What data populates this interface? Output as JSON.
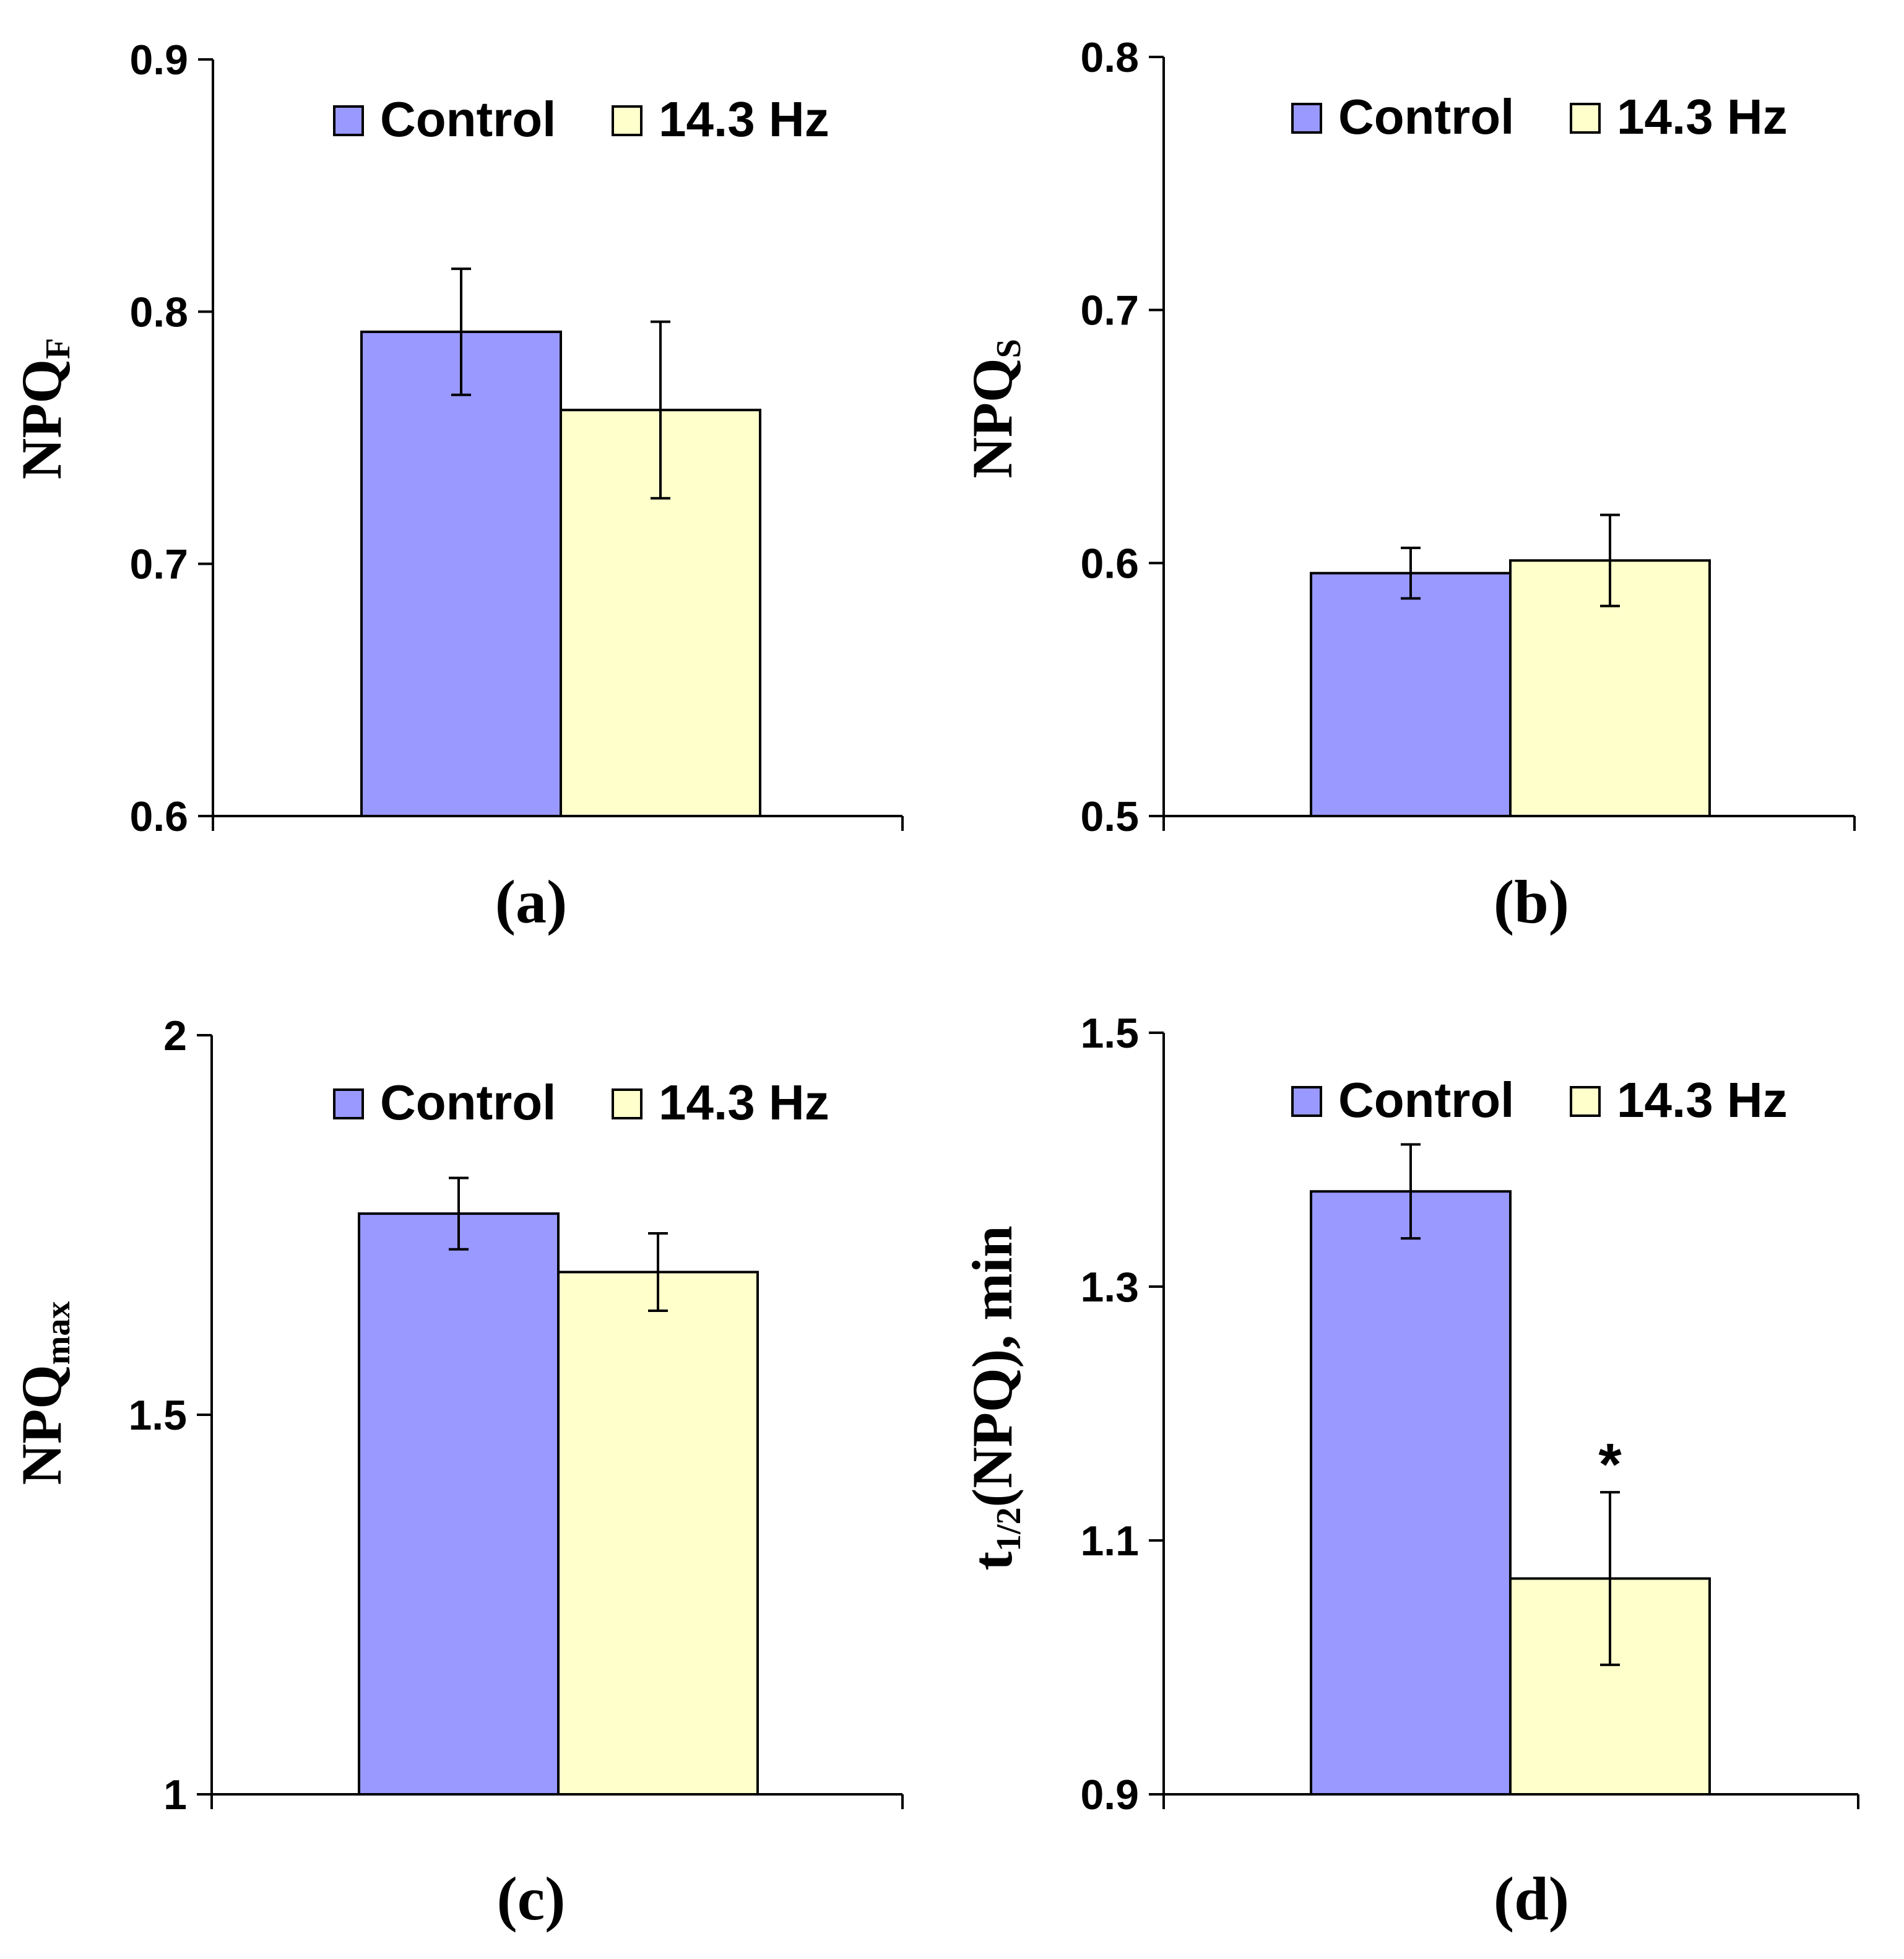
{
  "colors": {
    "control": "#9999ff",
    "treated": "#ffffcc",
    "axis": "#000000"
  },
  "chart_data": [
    {
      "type": "bar",
      "panel": "(a)",
      "ylabel": {
        "main": "NPQ",
        "sub": "F"
      },
      "ylim": [
        0.6,
        0.9
      ],
      "yticks": [
        "0.6",
        "0.7",
        "0.8",
        "0.9"
      ],
      "legend": [
        "Control",
        "14.3 Hz"
      ],
      "series": [
        {
          "name": "Control",
          "value": 0.792,
          "err": 0.025
        },
        {
          "name": "14.3 Hz",
          "value": 0.761,
          "err": 0.035
        }
      ],
      "annotation": ""
    },
    {
      "type": "bar",
      "panel": "(b)",
      "ylabel": {
        "main": "NPQ",
        "sub": "S"
      },
      "ylim": [
        0.5,
        0.8
      ],
      "yticks": [
        "0.5",
        "0.6",
        "0.7",
        "0.8"
      ],
      "legend": [
        "Control",
        "14.3 Hz"
      ],
      "series": [
        {
          "name": "Control",
          "value": 0.596,
          "err": 0.01
        },
        {
          "name": "14.3 Hz",
          "value": 0.601,
          "err": 0.018
        }
      ],
      "annotation": ""
    },
    {
      "type": "bar",
      "panel": "(c)",
      "ylabel": {
        "main": "NPQ",
        "sub": "max"
      },
      "ylim": [
        1,
        2
      ],
      "yticks": [
        "1",
        "1.5",
        "2"
      ],
      "legend": [
        "Control",
        "14.3 Hz"
      ],
      "series": [
        {
          "name": "Control",
          "value": 1.765,
          "err": 0.047
        },
        {
          "name": "14.3 Hz",
          "value": 1.688,
          "err": 0.051
        }
      ],
      "annotation": ""
    },
    {
      "type": "bar",
      "panel": "(d)",
      "ylabel": {
        "main": "t",
        "sub": "1/2",
        "suffix": "(NPQ), min"
      },
      "ylim": [
        0.9,
        1.5
      ],
      "yticks": [
        "0.9",
        "1.1",
        "1.3",
        "1.5"
      ],
      "legend": [
        "Control",
        "14.3 Hz"
      ],
      "series": [
        {
          "name": "Control",
          "value": 1.375,
          "err": 0.037
        },
        {
          "name": "14.3 Hz",
          "value": 1.07,
          "err": 0.068
        }
      ],
      "annotation": "*"
    }
  ]
}
